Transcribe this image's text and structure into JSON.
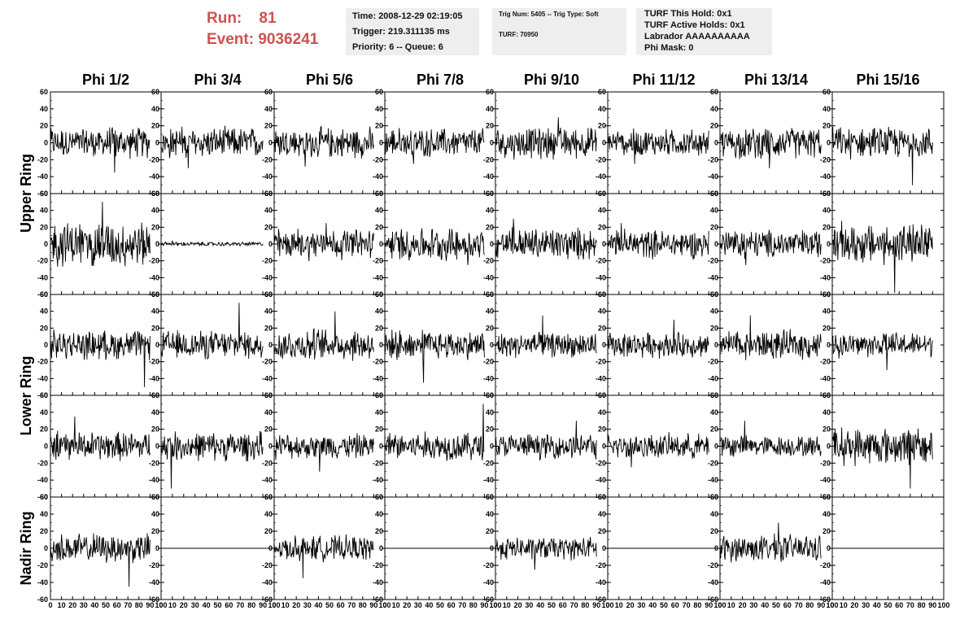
{
  "header": {
    "run_label": "Run:",
    "run_value": "81",
    "event_label": "Event:",
    "event_value": "9036241",
    "time": "Time: 2008-12-29 02:19:05",
    "trigger": "Trigger: 219.311135 ms",
    "priority": "Priority: 6 -- Queue: 6",
    "trig_num": "Trig Num: 5405 -- Trig Type: Soft",
    "turf": "TURF: 70950",
    "turf_this_hold": "TURF This Hold: 0x1",
    "turf_active_holds": "TURF Active Holds: 0x1",
    "labrador": "Labrador AAAAAAAAAA",
    "phi_mask": "Phi Mask: 0"
  },
  "colors": {
    "run_text": "#d05050",
    "box_bg": "#eeeeee",
    "trace": "#000000"
  },
  "chart_data": {
    "type": "line",
    "description_type": "waveform grid",
    "columns": [
      "Phi 1/2",
      "Phi 3/4",
      "Phi 5/6",
      "Phi 7/8",
      "Phi 9/10",
      "Phi 11/12",
      "Phi 13/14",
      "Phi 15/16"
    ],
    "ring_labels": [
      "Upper Ring",
      "Lower Ring",
      "Nadir Ring"
    ],
    "xlim": [
      0,
      100
    ],
    "ylim": [
      -60,
      60
    ],
    "x_ticks": [
      0,
      10,
      20,
      30,
      40,
      50,
      60,
      70,
      80,
      90,
      100
    ],
    "x_tick_labels": [
      "0",
      "10",
      "20",
      "30",
      "40",
      "50",
      "60",
      "70",
      "80",
      "90",
      "100"
    ],
    "y_ticks": [
      -60,
      -40,
      -20,
      0,
      20,
      40,
      60
    ],
    "y_tick_labels": [
      "-60",
      "-40",
      "-20",
      "0",
      "20",
      "40",
      "60"
    ],
    "samples_per_trace": 90,
    "rows": [
      {
        "amplitudes": [
          15,
          15,
          15,
          14,
          15,
          13,
          15,
          15
        ],
        "spikes": [
          35,
          30,
          28,
          25,
          30,
          25,
          30,
          50
        ]
      },
      {
        "amplitudes": [
          22,
          2,
          15,
          16,
          16,
          14,
          14,
          20
        ],
        "spikes": [
          50,
          4,
          25,
          25,
          30,
          25,
          25,
          60
        ]
      },
      {
        "amplitudes": [
          14,
          14,
          16,
          14,
          12,
          12,
          14,
          12
        ],
        "spikes": [
          50,
          50,
          40,
          45,
          35,
          30,
          35,
          30
        ]
      },
      {
        "amplitudes": [
          14,
          14,
          12,
          14,
          12,
          12,
          10,
          18
        ],
        "spikes": [
          35,
          50,
          30,
          50,
          30,
          25,
          30,
          50
        ]
      },
      {
        "amplitudes": [
          14,
          0,
          12,
          0,
          11,
          0,
          13,
          0
        ],
        "spikes": [
          45,
          0,
          35,
          0,
          25,
          0,
          30,
          0
        ]
      }
    ]
  }
}
